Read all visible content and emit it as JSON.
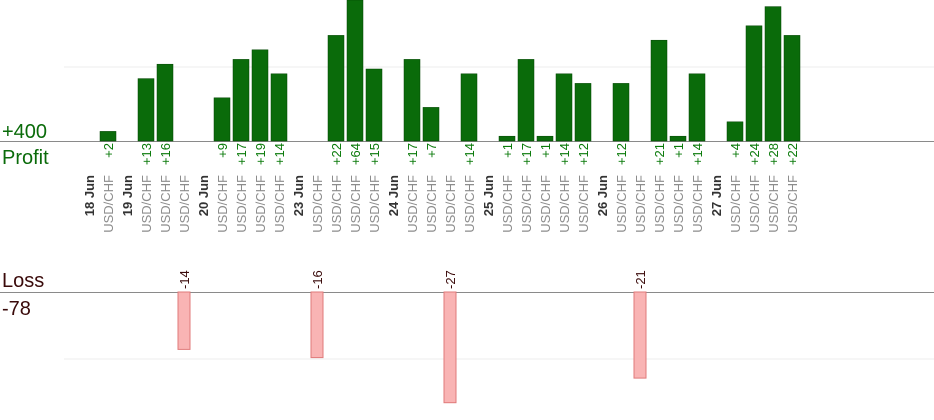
{
  "chart_data": {
    "type": "bar",
    "profit_label": "Profit",
    "loss_label": "Loss",
    "profit_scale_label": "+400",
    "loss_scale_label": "-78",
    "profit_color": "#0a6b0a",
    "loss_color": "#f9b4b4",
    "columns": [
      {
        "date": "18 Jun",
        "pair": "",
        "value": null
      },
      {
        "date": "",
        "pair": "USD/CHF",
        "value": 2
      },
      {
        "date": "19 Jun",
        "pair": "",
        "value": null
      },
      {
        "date": "",
        "pair": "USD/CHF",
        "value": 13
      },
      {
        "date": "",
        "pair": "USD/CHF",
        "value": 16
      },
      {
        "date": "",
        "pair": "USD/CHF",
        "value": -14
      },
      {
        "date": "20 Jun",
        "pair": "",
        "value": null
      },
      {
        "date": "",
        "pair": "USD/CHF",
        "value": 9
      },
      {
        "date": "",
        "pair": "USD/CHF",
        "value": 17
      },
      {
        "date": "",
        "pair": "USD/CHF",
        "value": 19
      },
      {
        "date": "",
        "pair": "USD/CHF",
        "value": 14
      },
      {
        "date": "23 Jun",
        "pair": "",
        "value": null
      },
      {
        "date": "",
        "pair": "USD/CHF",
        "value": -16
      },
      {
        "date": "",
        "pair": "USD/CHF",
        "value": 22
      },
      {
        "date": "",
        "pair": "USD/CHF",
        "value": 64
      },
      {
        "date": "",
        "pair": "USD/CHF",
        "value": 15
      },
      {
        "date": "24 Jun",
        "pair": "",
        "value": null
      },
      {
        "date": "",
        "pair": "USD/CHF",
        "value": 17
      },
      {
        "date": "",
        "pair": "USD/CHF",
        "value": 7
      },
      {
        "date": "",
        "pair": "USD/CHF",
        "value": -27
      },
      {
        "date": "",
        "pair": "USD/CHF",
        "value": 14
      },
      {
        "date": "25 Jun",
        "pair": "",
        "value": null
      },
      {
        "date": "",
        "pair": "USD/CHF",
        "value": 1
      },
      {
        "date": "",
        "pair": "USD/CHF",
        "value": 17
      },
      {
        "date": "",
        "pair": "USD/CHF",
        "value": 1
      },
      {
        "date": "",
        "pair": "USD/CHF",
        "value": 14
      },
      {
        "date": "",
        "pair": "USD/CHF",
        "value": 12
      },
      {
        "date": "26 Jun",
        "pair": "",
        "value": null
      },
      {
        "date": "",
        "pair": "USD/CHF",
        "value": 12
      },
      {
        "date": "",
        "pair": "USD/CHF",
        "value": -21
      },
      {
        "date": "",
        "pair": "USD/CHF",
        "value": 21
      },
      {
        "date": "",
        "pair": "USD/CHF",
        "value": 1
      },
      {
        "date": "",
        "pair": "USD/CHF",
        "value": 14
      },
      {
        "date": "27 Jun",
        "pair": "",
        "value": null
      },
      {
        "date": "",
        "pair": "USD/CHF",
        "value": 4
      },
      {
        "date": "",
        "pair": "USD/CHF",
        "value": 24
      },
      {
        "date": "",
        "pair": "USD/CHF",
        "value": 28
      },
      {
        "date": "",
        "pair": "USD/CHF",
        "value": 22
      }
    ]
  }
}
